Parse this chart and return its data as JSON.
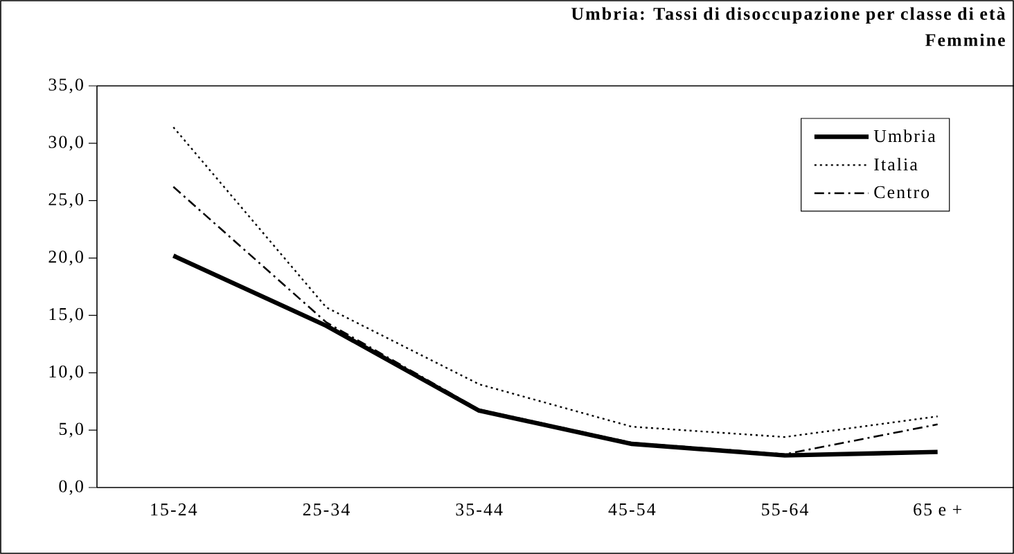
{
  "chart_data": {
    "type": "line",
    "title": "Umbria: Tassi di disoccupazione per classe di età",
    "subtitle": "Femmine",
    "categories": [
      "15-24",
      "25-34",
      "35-44",
      "45-54",
      "55-64",
      "65 e +"
    ],
    "series": [
      {
        "name": "Umbria",
        "color": "#000000",
        "line_style": "solid",
        "values": [
          20.2,
          14.1,
          6.7,
          3.8,
          2.8,
          3.1
        ]
      },
      {
        "name": "Italia",
        "color": "#000000",
        "line_style": "dotted",
        "values": [
          31.4,
          15.7,
          9.0,
          5.3,
          4.4,
          6.2
        ]
      },
      {
        "name": "Centro",
        "color": "#000000",
        "line_style": "dashed",
        "values": [
          26.2,
          14.4,
          6.8,
          3.9,
          2.9,
          5.5
        ]
      }
    ],
    "ylim": [
      0,
      35
    ],
    "yticks": [
      {
        "value": 0,
        "label": "0,0"
      },
      {
        "value": 5,
        "label": "5,0"
      },
      {
        "value": 10,
        "label": "10,0"
      },
      {
        "value": 15,
        "label": "15,0"
      },
      {
        "value": 20,
        "label": "20,0"
      },
      {
        "value": 25,
        "label": "25,0"
      },
      {
        "value": 30,
        "label": "30,0"
      },
      {
        "value": 35,
        "label": "35,0"
      }
    ],
    "grid": false,
    "legend": "top right",
    "marker": "none"
  }
}
